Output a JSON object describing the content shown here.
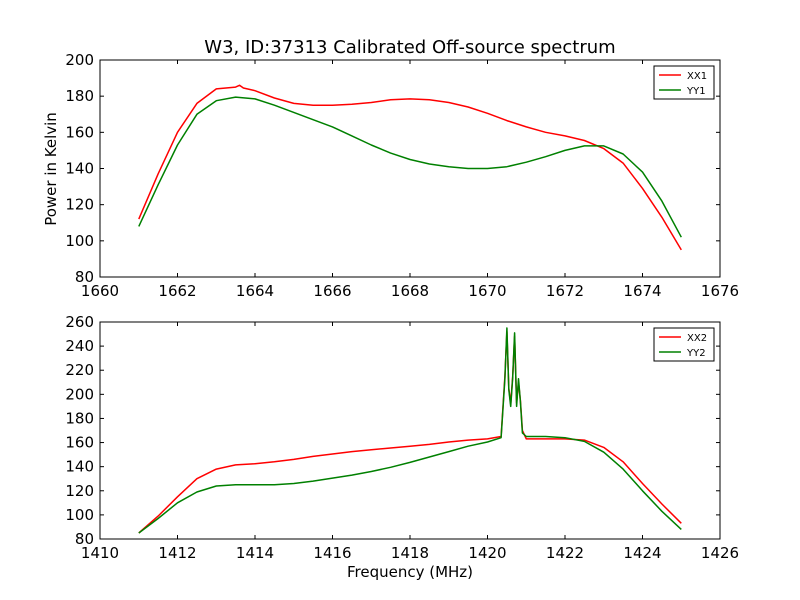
{
  "chart_data": [
    {
      "type": "line",
      "title": "W3, ID:37313 Calibrated Off-source spectrum",
      "xlabel": "",
      "ylabel": "Power in Kelvin",
      "xlim": [
        1660,
        1676
      ],
      "ylim": [
        80,
        200
      ],
      "xticks": [
        "1660",
        "1662",
        "1664",
        "1666",
        "1668",
        "1670",
        "1672",
        "1674",
        "1676"
      ],
      "yticks": [
        "80",
        "100",
        "120",
        "140",
        "160",
        "180",
        "200"
      ],
      "grid": false,
      "legend_position": "top-right",
      "series": [
        {
          "name": "XX1",
          "color": "#ff0000",
          "x": [
            1661.0,
            1661.5,
            1662.0,
            1662.5,
            1663.0,
            1663.5,
            1663.6,
            1663.7,
            1664.0,
            1664.5,
            1665.0,
            1665.5,
            1666.0,
            1666.5,
            1667.0,
            1667.5,
            1668.0,
            1668.5,
            1669.0,
            1669.5,
            1670.0,
            1670.5,
            1671.0,
            1671.5,
            1672.0,
            1672.5,
            1673.0,
            1673.5,
            1674.0,
            1674.5,
            1675.0
          ],
          "y": [
            112,
            137,
            160,
            176,
            184,
            185,
            186,
            184.5,
            183,
            179,
            176,
            175,
            175,
            175.5,
            176.5,
            178,
            178.5,
            178,
            176.5,
            174,
            170.5,
            166.5,
            163,
            160,
            158,
            155.5,
            151,
            143,
            129,
            113,
            95
          ]
        },
        {
          "name": "YY1",
          "color": "#008000",
          "x": [
            1661.0,
            1661.5,
            1662.0,
            1662.5,
            1663.0,
            1663.5,
            1664.0,
            1664.5,
            1665.0,
            1665.5,
            1666.0,
            1666.5,
            1667.0,
            1667.5,
            1668.0,
            1668.5,
            1669.0,
            1669.5,
            1670.0,
            1670.5,
            1671.0,
            1671.5,
            1672.0,
            1672.5,
            1673.0,
            1673.5,
            1674.0,
            1674.5,
            1675.0
          ],
          "y": [
            108,
            131,
            153,
            170,
            177.5,
            179.5,
            178.5,
            175,
            171,
            167,
            163,
            158,
            153,
            148.5,
            145,
            142.5,
            141,
            140,
            140,
            141,
            143.5,
            146.5,
            150,
            152.5,
            152.5,
            148,
            138,
            122,
            102
          ]
        }
      ]
    },
    {
      "type": "line",
      "title": "",
      "xlabel": "Frequency (MHz)",
      "ylabel": "",
      "xlim": [
        1410,
        1426
      ],
      "ylim": [
        80,
        260
      ],
      "xticks": [
        "1410",
        "1412",
        "1414",
        "1416",
        "1418",
        "1420",
        "1422",
        "1424",
        "1426"
      ],
      "yticks": [
        "80",
        "100",
        "120",
        "140",
        "160",
        "180",
        "200",
        "220",
        "240",
        "260"
      ],
      "grid": false,
      "legend_position": "top-right",
      "series": [
        {
          "name": "XX2",
          "color": "#ff0000",
          "x": [
            1411.0,
            1411.5,
            1412.0,
            1412.5,
            1413.0,
            1413.5,
            1414.0,
            1414.5,
            1415.0,
            1415.5,
            1416.0,
            1416.5,
            1417.0,
            1417.5,
            1418.0,
            1418.5,
            1419.0,
            1419.5,
            1420.0,
            1420.35,
            1420.45,
            1420.5,
            1420.55,
            1420.6,
            1420.65,
            1420.7,
            1420.75,
            1420.8,
            1420.85,
            1420.9,
            1421.0,
            1421.5,
            1422.0,
            1422.5,
            1423.0,
            1423.5,
            1424.0,
            1424.5,
            1425.0
          ],
          "y": [
            85,
            99,
            115,
            130,
            138,
            141.5,
            142.5,
            144,
            146,
            148.5,
            150.5,
            152.5,
            154,
            155.5,
            157,
            158.5,
            160.5,
            162,
            163,
            165,
            215,
            252,
            205,
            192,
            215,
            248,
            193,
            210,
            195,
            170,
            163,
            163,
            163,
            162,
            156,
            144,
            126,
            109,
            93
          ]
        },
        {
          "name": "YY2",
          "color": "#008000",
          "x": [
            1411.0,
            1411.5,
            1412.0,
            1412.5,
            1413.0,
            1413.5,
            1414.0,
            1414.5,
            1415.0,
            1415.5,
            1416.0,
            1416.5,
            1417.0,
            1417.5,
            1418.0,
            1418.5,
            1419.0,
            1419.5,
            1420.0,
            1420.35,
            1420.45,
            1420.5,
            1420.55,
            1420.6,
            1420.65,
            1420.7,
            1420.75,
            1420.8,
            1420.85,
            1420.9,
            1421.0,
            1421.5,
            1422.0,
            1422.5,
            1423.0,
            1423.5,
            1424.0,
            1424.5,
            1425.0
          ],
          "y": [
            85,
            97,
            110,
            119,
            124,
            125,
            125,
            125,
            126,
            128,
            130.5,
            133,
            136,
            139.5,
            143.5,
            148,
            152.5,
            157,
            160.5,
            164,
            213,
            255,
            204,
            190,
            214,
            251,
            190,
            213,
            194,
            168,
            165,
            165,
            164,
            161,
            152,
            138,
            120,
            103,
            88
          ]
        }
      ]
    }
  ]
}
